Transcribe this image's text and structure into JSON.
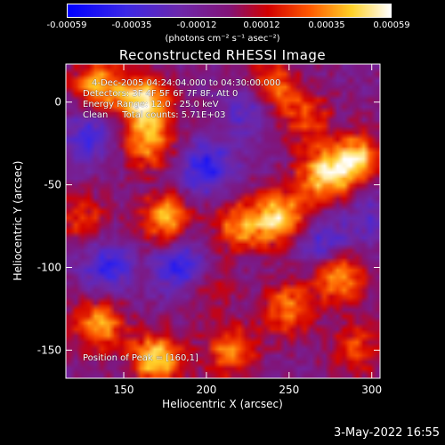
{
  "colorbar": {
    "ticks": [
      "-0.00059",
      "-0.00035",
      "-0.00012",
      "0.00012",
      "0.00035",
      "0.00059"
    ],
    "units": "(photons cm⁻² s⁻¹ asec⁻²)"
  },
  "chart_data": {
    "type": "heatmap",
    "title": "Reconstructed RHESSI Image",
    "xlabel": "Heliocentric X (arcsec)",
    "ylabel": "Heliocentric Y (arcsec)",
    "xlim": [
      115,
      305
    ],
    "ylim": [
      -167,
      23
    ],
    "x_ticks": [
      150,
      200,
      250,
      300
    ],
    "y_ticks": [
      0,
      -50,
      -100,
      -150
    ],
    "colorscale_range": [
      -0.00059,
      0.00059
    ],
    "peak": [
      160,
      1
    ],
    "hot_regions": [
      {
        "x": 135,
        "y": 10,
        "value": 0.00045
      },
      {
        "x": 162,
        "y": 0,
        "value": 0.00059
      },
      {
        "x": 165,
        "y": -25,
        "value": 0.0004
      },
      {
        "x": 240,
        "y": 10,
        "value": 0.00035
      },
      {
        "x": 260,
        "y": -10,
        "value": 0.0003
      },
      {
        "x": 290,
        "y": -35,
        "value": 0.00055
      },
      {
        "x": 270,
        "y": -45,
        "value": 0.0005
      },
      {
        "x": 245,
        "y": -70,
        "value": 0.00055
      },
      {
        "x": 220,
        "y": -75,
        "value": 0.0004
      },
      {
        "x": 175,
        "y": -70,
        "value": 0.00045
      },
      {
        "x": 280,
        "y": -105,
        "value": 0.00045
      },
      {
        "x": 250,
        "y": -125,
        "value": 0.0004
      },
      {
        "x": 135,
        "y": -135,
        "value": 0.00045
      },
      {
        "x": 170,
        "y": -155,
        "value": 0.00055
      },
      {
        "x": 215,
        "y": -150,
        "value": 0.0004
      },
      {
        "x": 290,
        "y": -150,
        "value": 0.0003
      },
      {
        "x": 125,
        "y": -70,
        "value": 0.00025
      },
      {
        "x": 200,
        "y": -110,
        "value": 0.0002
      }
    ],
    "cold_regions": [
      {
        "x": 130,
        "y": -20,
        "value": -0.0003
      },
      {
        "x": 200,
        "y": -40,
        "value": -0.0004
      },
      {
        "x": 185,
        "y": -100,
        "value": -0.0004
      },
      {
        "x": 140,
        "y": -100,
        "value": -0.00035
      },
      {
        "x": 270,
        "y": -85,
        "value": -0.0003
      },
      {
        "x": 225,
        "y": -5,
        "value": -0.00025
      },
      {
        "x": 300,
        "y": -70,
        "value": -0.0002
      }
    ]
  },
  "info": {
    "time": "4-Dec-2005 04:24:04.000 to 04:30:00.000",
    "detectors": "Detectors: 3F 4F 5F 6F 7F 8F, Att 0",
    "energy": "Energy Range: 12.0 - 25.0 keV",
    "clean": "Clean     Total counts: 5.71E+03",
    "peak": "Position of Peak = [160,1]"
  },
  "footer": {
    "date": "3-May-2022 16:55"
  }
}
